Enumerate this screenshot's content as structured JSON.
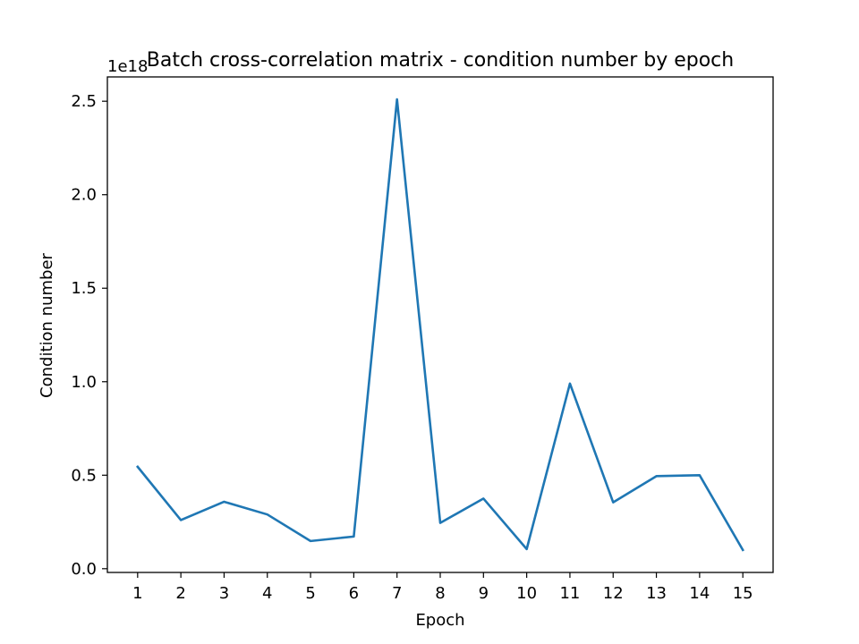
{
  "chart_data": {
    "type": "line",
    "title": "Batch cross-correlation matrix - condition number by epoch",
    "xlabel": "Epoch",
    "ylabel": "Condition number",
    "y_offset_text": "1e18",
    "y_scale_exponent": 18,
    "grid": false,
    "legend": "none",
    "x": [
      1,
      2,
      3,
      4,
      5,
      6,
      7,
      8,
      9,
      10,
      11,
      12,
      13,
      14,
      15
    ],
    "xlim": [
      0.3,
      15.7
    ],
    "ylim": [
      -0.02,
      2.63
    ],
    "x_ticks": [
      1,
      2,
      3,
      4,
      5,
      6,
      7,
      8,
      9,
      10,
      11,
      12,
      13,
      14,
      15
    ],
    "y_ticks": [
      0.0,
      0.5,
      1.0,
      1.5,
      2.0,
      2.5
    ],
    "y_tick_labels": [
      "0.0",
      "0.5",
      "1.0",
      "1.5",
      "2.0",
      "2.5"
    ],
    "series": [
      {
        "color": "#1f77b4",
        "values": [
          0.545,
          0.26,
          0.358,
          0.29,
          0.148,
          0.172,
          2.51,
          0.245,
          0.375,
          0.105,
          0.99,
          0.355,
          0.495,
          0.5,
          0.1
        ]
      }
    ]
  }
}
